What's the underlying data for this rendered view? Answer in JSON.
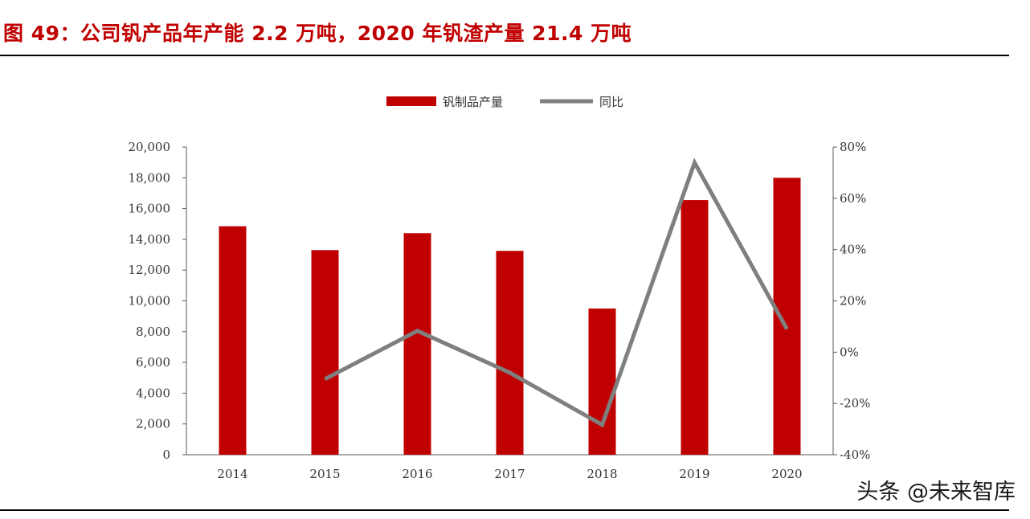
{
  "figure": {
    "title": "图 49：公司钒产品年产能 2.2 万吨，2020 年钒渣产量 21.4 万吨",
    "watermark": "头条 @未来智库"
  },
  "chart_data": {
    "type": "bar",
    "title": "",
    "xlabel": "",
    "ylabel": "",
    "categories": [
      "2014",
      "2015",
      "2016",
      "2017",
      "2018",
      "2019",
      "2020"
    ],
    "series": [
      {
        "name": "钒制品产量",
        "type": "bar",
        "axis": "left",
        "color": "#c00000",
        "values": [
          14850,
          13300,
          14400,
          13250,
          9500,
          16550,
          18000
        ]
      },
      {
        "name": "同比",
        "type": "line",
        "axis": "right",
        "color": "#7f7f7f",
        "values": [
          null,
          -10.5,
          8.3,
          -8.0,
          -28.3,
          73.9,
          9.0
        ]
      }
    ],
    "left_axis": {
      "ylim": [
        0,
        20000
      ],
      "ticks": [
        "0",
        "2,000",
        "4,000",
        "6,000",
        "8,000",
        "10,000",
        "12,000",
        "14,000",
        "16,000",
        "18,000",
        "20,000"
      ]
    },
    "right_axis": {
      "ylim": [
        -40,
        80
      ],
      "unit": "%",
      "ticks": [
        "-40%",
        "-20%",
        "0%",
        "20%",
        "40%",
        "60%",
        "80%"
      ]
    },
    "grid": false,
    "legend_position": "top-center"
  }
}
